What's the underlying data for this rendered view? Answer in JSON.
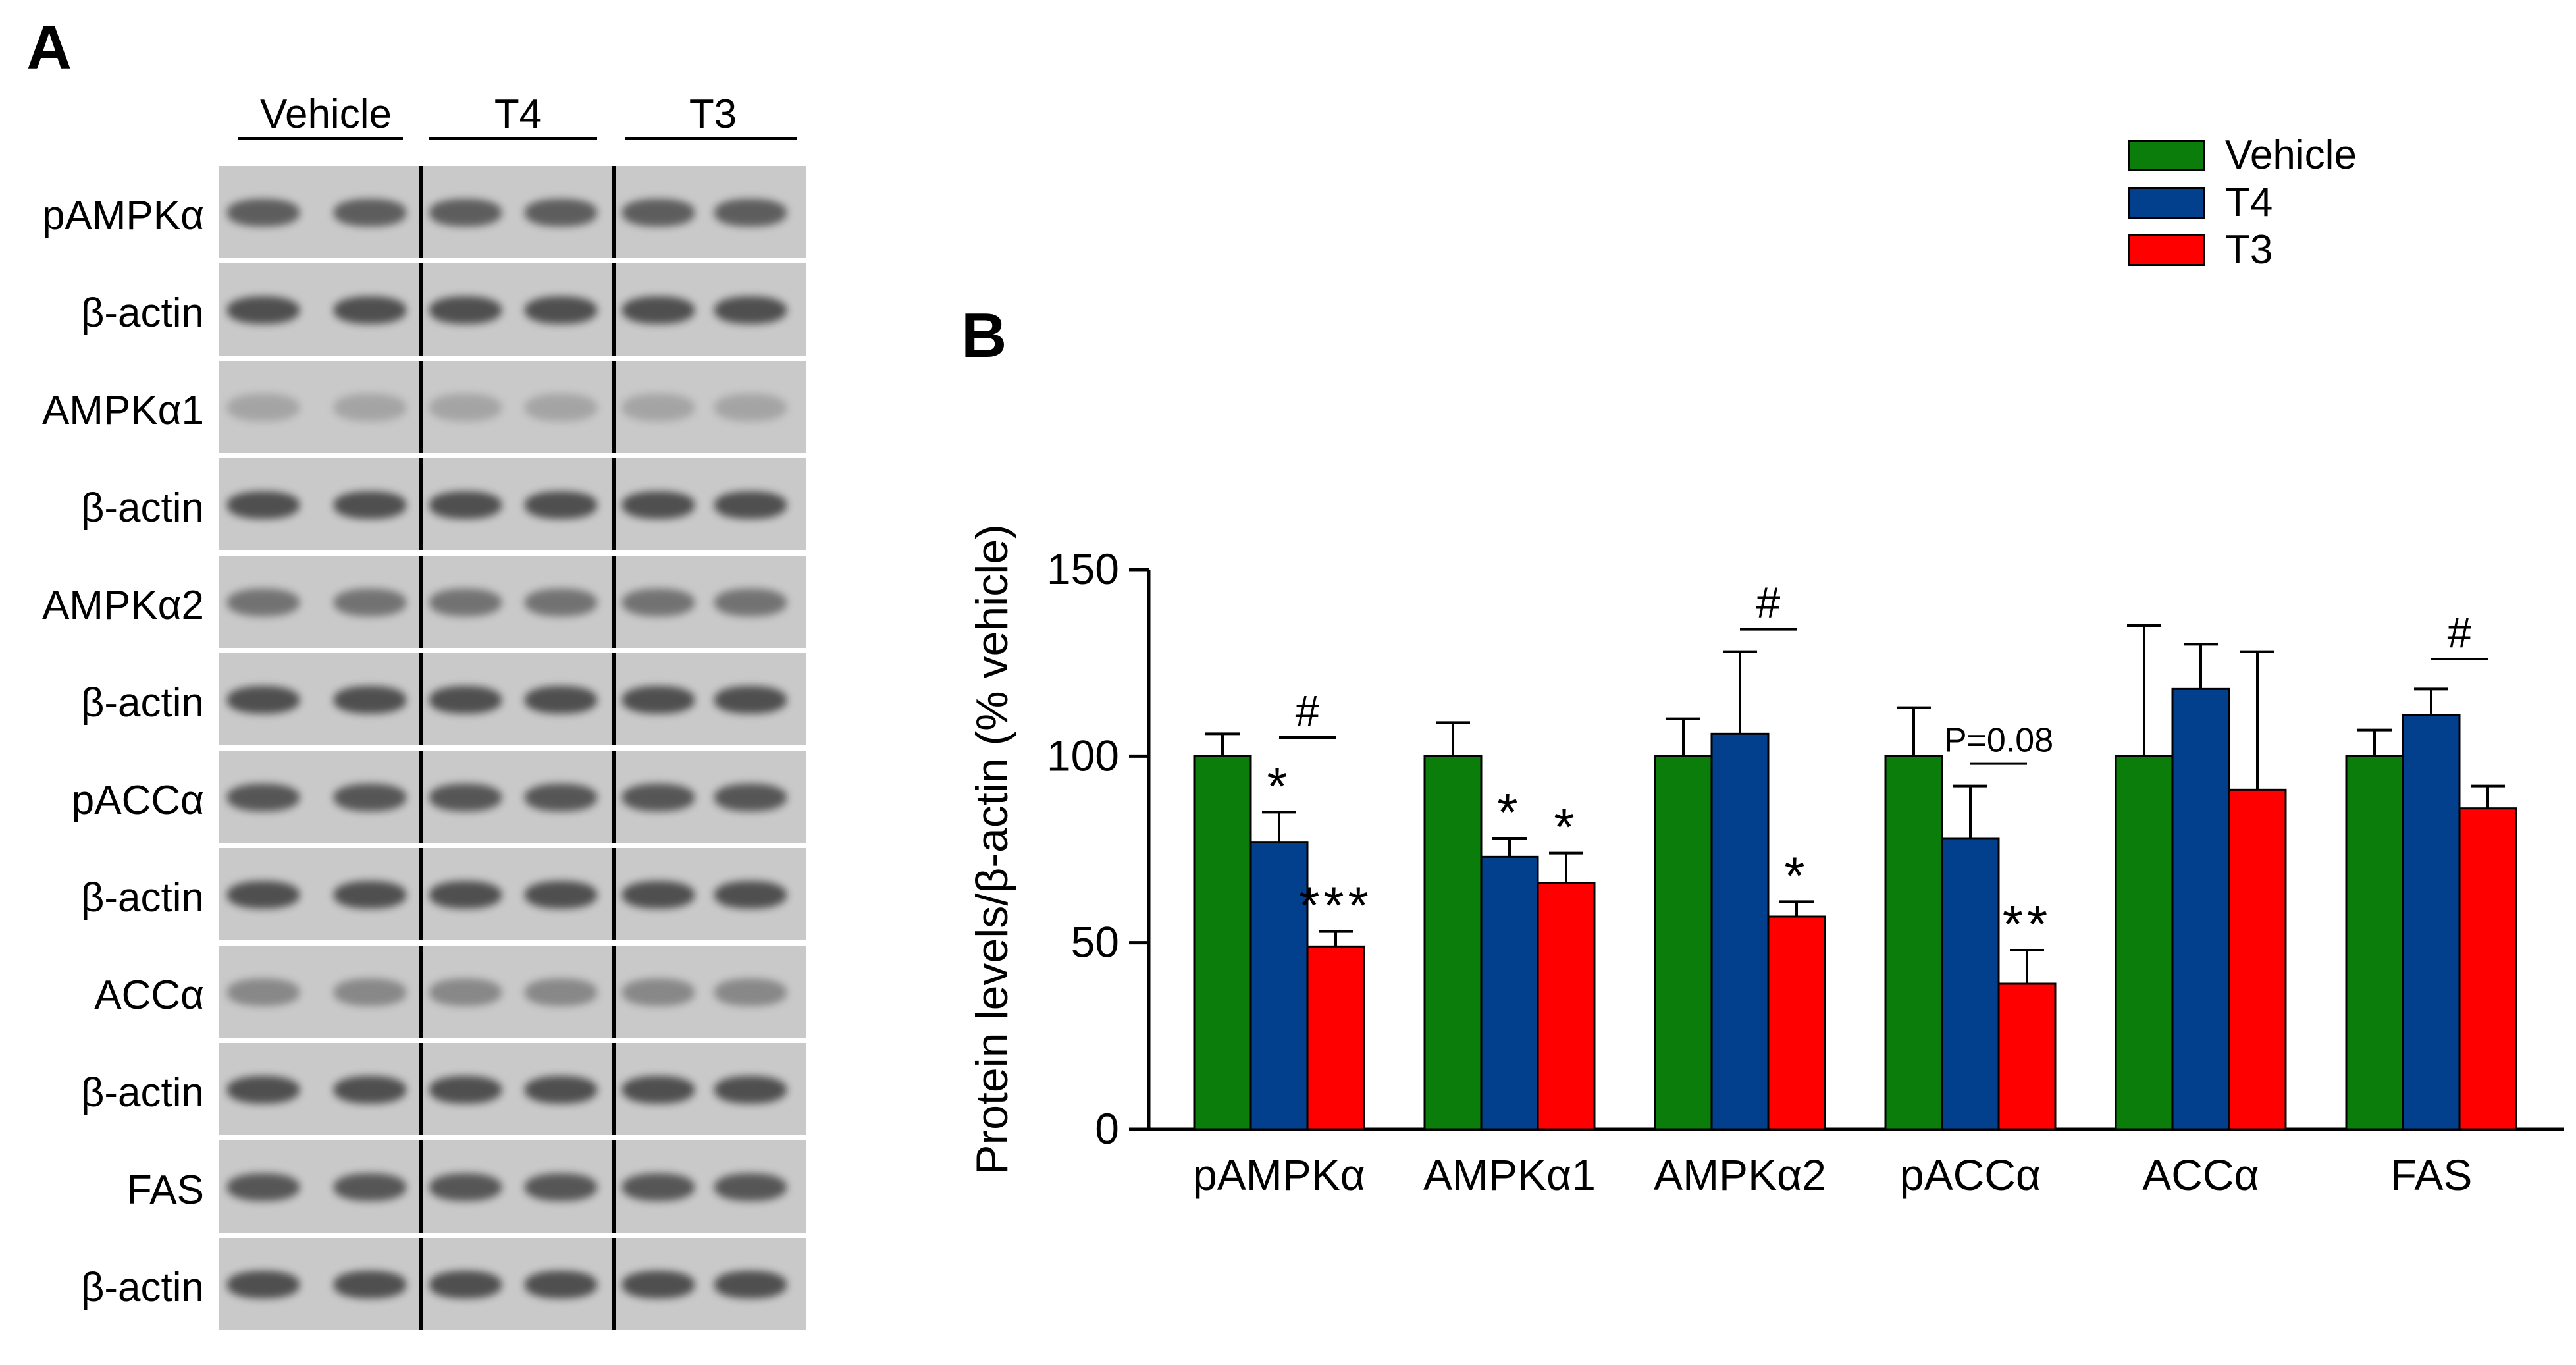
{
  "panel_a": {
    "letter": "A",
    "groups": [
      "Vehicle",
      "T4",
      "T3"
    ],
    "rows": [
      "pAMPKα",
      "β-actin",
      "AMPKα1",
      "β-actin",
      "AMPKα2",
      "β-actin",
      "pACCα",
      "β-actin",
      "ACCα",
      "β-actin",
      "FAS",
      "β-actin"
    ]
  },
  "panel_b": {
    "letter": "B"
  },
  "chart_data": {
    "type": "bar",
    "title": "",
    "xlabel": "",
    "ylabel": "Protein levels/β-actin (% vehicle)",
    "ylim": [
      0,
      150
    ],
    "yticks": [
      "0",
      "50",
      "100",
      "150"
    ],
    "categories": [
      "pAMPKα",
      "AMPKα1",
      "AMPKα2",
      "pACCα",
      "ACCα",
      "FAS"
    ],
    "series": [
      {
        "name": "Vehicle",
        "color": "#0a7d0a",
        "values": [
          100,
          100,
          100,
          100,
          100,
          100
        ],
        "errors": [
          6,
          9,
          10,
          13,
          35,
          7
        ]
      },
      {
        "name": "T4",
        "color": "#023f8c",
        "values": [
          77,
          73,
          106,
          78,
          118,
          111
        ],
        "errors": [
          8,
          5,
          22,
          14,
          12,
          7
        ]
      },
      {
        "name": "T3",
        "color": "#ff0000",
        "values": [
          49,
          66,
          57,
          39,
          91,
          86
        ],
        "errors": [
          4,
          8,
          4,
          9,
          37,
          6
        ]
      }
    ],
    "significance": [
      {
        "category": 0,
        "series": 1,
        "text": "*"
      },
      {
        "category": 0,
        "series": 2,
        "text": "***"
      },
      {
        "category": 1,
        "series": 1,
        "text": "*"
      },
      {
        "category": 1,
        "series": 2,
        "text": "*"
      },
      {
        "category": 2,
        "series": 2,
        "text": "*"
      },
      {
        "category": 3,
        "series": 2,
        "text": "**"
      }
    ],
    "comparisons": [
      {
        "category": 0,
        "text": "#",
        "level": 105
      },
      {
        "category": 2,
        "text": "#",
        "level": 134
      },
      {
        "category": 3,
        "text": "P=0.08",
        "level": 98
      },
      {
        "category": 5,
        "text": "#",
        "level": 126
      }
    ]
  }
}
